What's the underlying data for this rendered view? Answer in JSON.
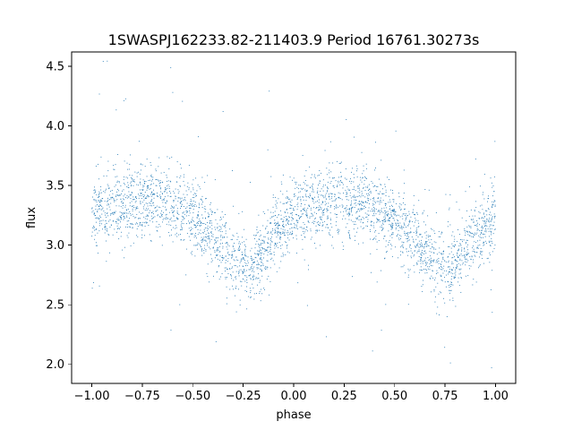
{
  "chart_data": {
    "type": "scatter",
    "title": "1SWASPJ162233.82-211403.9 Period 16761.30273s",
    "xlabel": "phase",
    "ylabel": "flux",
    "xlim": [
      -1.1,
      1.1
    ],
    "ylim": [
      1.84,
      4.62
    ],
    "x_ticks": [
      -1.0,
      -0.75,
      -0.5,
      -0.25,
      0.0,
      0.25,
      0.5,
      0.75,
      1.0
    ],
    "x_tick_labels": [
      "−1.00",
      "−0.75",
      "−0.50",
      "−0.25",
      "0.00",
      "0.25",
      "0.50",
      "0.75",
      "1.00"
    ],
    "y_ticks": [
      2.0,
      2.5,
      3.0,
      3.5,
      4.0,
      4.5
    ],
    "y_tick_labels": [
      "2.0",
      "2.5",
      "3.0",
      "3.5",
      "4.0",
      "4.5"
    ],
    "grid": false,
    "legend": "none",
    "point_color": "#1f77b4",
    "series": [
      {
        "points_per_curve": 17,
        "phase": [
          -1.0,
          -0.9,
          -0.8,
          -0.7,
          -0.6,
          -0.5,
          -0.4,
          -0.3,
          -0.22,
          -0.1,
          0.0,
          0.1,
          0.2,
          0.3,
          0.4,
          0.5,
          0.6,
          0.72,
          0.8,
          0.9,
          1.0
        ],
        "flux_median": [
          3.28,
          3.32,
          3.36,
          3.38,
          3.34,
          3.25,
          3.08,
          2.86,
          2.78,
          3.1,
          3.26,
          3.34,
          3.38,
          3.37,
          3.3,
          3.22,
          3.05,
          2.82,
          2.85,
          3.05,
          3.28
        ],
        "flux_scatter": 0.15,
        "flux_range": [
          1.95,
          4.55
        ]
      }
    ]
  }
}
